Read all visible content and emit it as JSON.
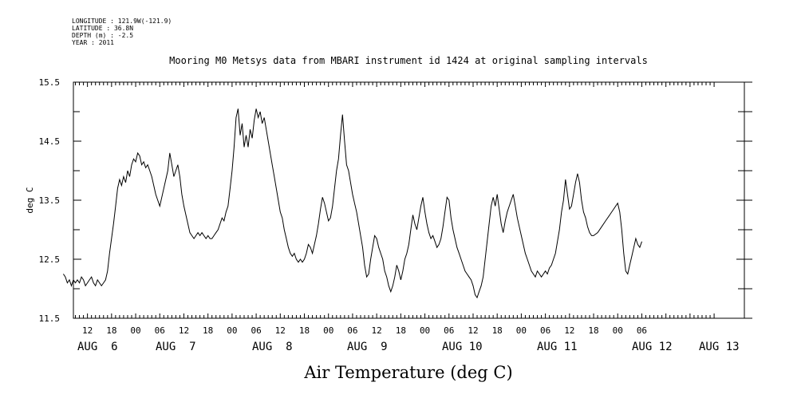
{
  "metadata": {
    "longitude": "LONGITUDE : 121.9W(-121.9)",
    "latitude": "LATITUDE : 36.8N",
    "depth": "DEPTH (m) : -2.5",
    "year": "YEAR : 2011"
  },
  "chart_data": {
    "type": "line",
    "title": "Mooring M0 Metsys data from MBARI instrument id 1424 at original sampling intervals",
    "xlabel": "Air Temperature (deg C)",
    "ylabel": "deg C",
    "x_units": "hours since 2011-08-06 00:00",
    "xlim": [
      6,
      150
    ],
    "ylim": [
      11.5,
      15.5
    ],
    "y_ticks": [
      "11.5",
      "12.5",
      "13.5",
      "14.5",
      "15.5"
    ],
    "hour_ticks": [
      {
        "t": 12,
        "label": "12"
      },
      {
        "t": 18,
        "label": "18"
      },
      {
        "t": 24,
        "label": "00"
      },
      {
        "t": 30,
        "label": "06"
      },
      {
        "t": 36,
        "label": "12"
      },
      {
        "t": 42,
        "label": "18"
      },
      {
        "t": 48,
        "label": "00"
      },
      {
        "t": 54,
        "label": "06"
      },
      {
        "t": 60,
        "label": "12"
      },
      {
        "t": 66,
        "label": "18"
      },
      {
        "t": 72,
        "label": "00"
      },
      {
        "t": 78,
        "label": "06"
      },
      {
        "t": 84,
        "label": "12"
      },
      {
        "t": 90,
        "label": "18"
      },
      {
        "t": 96,
        "label": "00"
      },
      {
        "t": 102,
        "label": "06"
      },
      {
        "t": 108,
        "label": "12"
      },
      {
        "t": 114,
        "label": "18"
      },
      {
        "t": 120,
        "label": "00"
      },
      {
        "t": 126,
        "label": "06"
      },
      {
        "t": 132,
        "label": "12"
      },
      {
        "t": 138,
        "label": "18"
      },
      {
        "t": 144,
        "label": "00"
      },
      {
        "t": 150,
        "label": "06"
      }
    ],
    "day_labels": [
      {
        "t": 12,
        "label": "AUG  6"
      },
      {
        "t": 36,
        "label": "AUG  7"
      },
      {
        "t": 60,
        "label": "AUG  8"
      },
      {
        "t": 84,
        "label": "AUG  9"
      },
      {
        "t": 108,
        "label": "AUG 10"
      },
      {
        "t": 132,
        "label": "AUG 11"
      },
      {
        "t": 156,
        "label": "AUG 12"
      },
      {
        "t": 180,
        "label": "AUG 13"
      }
    ],
    "grid": false,
    "series": [
      {
        "color": "#000000",
        "points": [
          [
            6.0,
            12.25
          ],
          [
            6.5,
            12.2
          ],
          [
            7.0,
            12.1
          ],
          [
            7.5,
            12.15
          ],
          [
            8.0,
            12.05
          ],
          [
            8.5,
            12.15
          ],
          [
            9.0,
            12.1
          ],
          [
            9.5,
            12.15
          ],
          [
            10.0,
            12.1
          ],
          [
            10.5,
            12.2
          ],
          [
            11.0,
            12.15
          ],
          [
            11.5,
            12.05
          ],
          [
            12.0,
            12.1
          ],
          [
            12.5,
            12.15
          ],
          [
            13.0,
            12.2
          ],
          [
            13.5,
            12.1
          ],
          [
            14.0,
            12.05
          ],
          [
            14.5,
            12.15
          ],
          [
            15.0,
            12.1
          ],
          [
            15.5,
            12.05
          ],
          [
            16.0,
            12.1
          ],
          [
            16.5,
            12.15
          ],
          [
            17.0,
            12.3
          ],
          [
            17.5,
            12.6
          ],
          [
            18.0,
            12.85
          ],
          [
            18.5,
            13.1
          ],
          [
            19.0,
            13.4
          ],
          [
            19.5,
            13.7
          ],
          [
            20.0,
            13.85
          ],
          [
            20.5,
            13.75
          ],
          [
            21.0,
            13.9
          ],
          [
            21.5,
            13.8
          ],
          [
            22.0,
            14.0
          ],
          [
            22.5,
            13.9
          ],
          [
            23.0,
            14.1
          ],
          [
            23.5,
            14.2
          ],
          [
            24.0,
            14.15
          ],
          [
            24.5,
            14.3
          ],
          [
            25.0,
            14.25
          ],
          [
            25.5,
            14.1
          ],
          [
            26.0,
            14.15
          ],
          [
            26.5,
            14.05
          ],
          [
            27.0,
            14.1
          ],
          [
            27.5,
            14.0
          ],
          [
            28.0,
            13.9
          ],
          [
            28.5,
            13.75
          ],
          [
            29.0,
            13.6
          ],
          [
            29.5,
            13.5
          ],
          [
            30.0,
            13.4
          ],
          [
            30.5,
            13.55
          ],
          [
            31.0,
            13.7
          ],
          [
            31.5,
            13.85
          ],
          [
            32.0,
            14.0
          ],
          [
            32.5,
            14.3
          ],
          [
            33.0,
            14.1
          ],
          [
            33.5,
            13.9
          ],
          [
            34.0,
            14.0
          ],
          [
            34.5,
            14.1
          ],
          [
            35.0,
            13.9
          ],
          [
            35.5,
            13.6
          ],
          [
            36.0,
            13.4
          ],
          [
            36.5,
            13.25
          ],
          [
            37.0,
            13.1
          ],
          [
            37.5,
            12.95
          ],
          [
            38.0,
            12.9
          ],
          [
            38.5,
            12.85
          ],
          [
            39.0,
            12.9
          ],
          [
            39.5,
            12.95
          ],
          [
            40.0,
            12.9
          ],
          [
            40.5,
            12.95
          ],
          [
            41.0,
            12.9
          ],
          [
            41.5,
            12.85
          ],
          [
            42.0,
            12.9
          ],
          [
            42.5,
            12.85
          ],
          [
            43.0,
            12.85
          ],
          [
            43.5,
            12.9
          ],
          [
            44.0,
            12.95
          ],
          [
            44.5,
            13.0
          ],
          [
            45.0,
            13.1
          ],
          [
            45.5,
            13.2
          ],
          [
            46.0,
            13.15
          ],
          [
            46.5,
            13.3
          ],
          [
            47.0,
            13.4
          ],
          [
            47.5,
            13.7
          ],
          [
            48.0,
            14.0
          ],
          [
            48.5,
            14.4
          ],
          [
            49.0,
            14.9
          ],
          [
            49.5,
            15.05
          ],
          [
            50.0,
            14.6
          ],
          [
            50.5,
            14.8
          ],
          [
            51.0,
            14.4
          ],
          [
            51.5,
            14.6
          ],
          [
            52.0,
            14.4
          ],
          [
            52.5,
            14.7
          ],
          [
            53.0,
            14.55
          ],
          [
            53.5,
            14.85
          ],
          [
            54.0,
            15.05
          ],
          [
            54.5,
            14.9
          ],
          [
            55.0,
            15.0
          ],
          [
            55.5,
            14.8
          ],
          [
            56.0,
            14.9
          ],
          [
            56.5,
            14.7
          ],
          [
            57.0,
            14.5
          ],
          [
            57.5,
            14.3
          ],
          [
            58.0,
            14.1
          ],
          [
            58.5,
            13.9
          ],
          [
            59.0,
            13.7
          ],
          [
            59.5,
            13.5
          ],
          [
            60.0,
            13.3
          ],
          [
            60.5,
            13.2
          ],
          [
            61.0,
            13.0
          ],
          [
            61.5,
            12.85
          ],
          [
            62.0,
            12.7
          ],
          [
            62.5,
            12.6
          ],
          [
            63.0,
            12.55
          ],
          [
            63.5,
            12.6
          ],
          [
            64.0,
            12.5
          ],
          [
            64.5,
            12.45
          ],
          [
            65.0,
            12.5
          ],
          [
            65.5,
            12.45
          ],
          [
            66.0,
            12.5
          ],
          [
            66.5,
            12.6
          ],
          [
            67.0,
            12.75
          ],
          [
            67.5,
            12.7
          ],
          [
            68.0,
            12.6
          ],
          [
            68.5,
            12.75
          ],
          [
            69.0,
            12.9
          ],
          [
            69.5,
            13.1
          ],
          [
            70.0,
            13.35
          ],
          [
            70.5,
            13.55
          ],
          [
            71.0,
            13.45
          ],
          [
            71.5,
            13.3
          ],
          [
            72.0,
            13.15
          ],
          [
            72.5,
            13.2
          ],
          [
            73.0,
            13.4
          ],
          [
            73.5,
            13.7
          ],
          [
            74.0,
            14.0
          ],
          [
            74.5,
            14.2
          ],
          [
            75.0,
            14.6
          ],
          [
            75.5,
            14.95
          ],
          [
            76.0,
            14.5
          ],
          [
            76.5,
            14.1
          ],
          [
            77.0,
            14.0
          ],
          [
            77.5,
            13.8
          ],
          [
            78.0,
            13.6
          ],
          [
            78.5,
            13.45
          ],
          [
            79.0,
            13.3
          ],
          [
            79.5,
            13.1
          ],
          [
            80.0,
            12.9
          ],
          [
            80.5,
            12.7
          ],
          [
            81.0,
            12.4
          ],
          [
            81.5,
            12.2
          ],
          [
            82.0,
            12.25
          ],
          [
            82.5,
            12.5
          ],
          [
            83.0,
            12.7
          ],
          [
            83.5,
            12.9
          ],
          [
            84.0,
            12.85
          ],
          [
            84.5,
            12.7
          ],
          [
            85.0,
            12.6
          ],
          [
            85.5,
            12.5
          ],
          [
            86.0,
            12.3
          ],
          [
            86.5,
            12.2
          ],
          [
            87.0,
            12.05
          ],
          [
            87.5,
            11.95
          ],
          [
            88.0,
            12.05
          ],
          [
            88.5,
            12.2
          ],
          [
            89.0,
            12.4
          ],
          [
            89.5,
            12.3
          ],
          [
            90.0,
            12.15
          ],
          [
            90.5,
            12.3
          ],
          [
            91.0,
            12.5
          ],
          [
            91.5,
            12.6
          ],
          [
            92.0,
            12.75
          ],
          [
            92.5,
            13.0
          ],
          [
            93.0,
            13.25
          ],
          [
            93.5,
            13.1
          ],
          [
            94.0,
            13.0
          ],
          [
            94.5,
            13.2
          ],
          [
            95.0,
            13.4
          ],
          [
            95.5,
            13.55
          ],
          [
            96.0,
            13.3
          ],
          [
            96.5,
            13.1
          ],
          [
            97.0,
            12.95
          ],
          [
            97.5,
            12.85
          ],
          [
            98.0,
            12.9
          ],
          [
            98.5,
            12.8
          ],
          [
            99.0,
            12.7
          ],
          [
            99.5,
            12.75
          ],
          [
            100.0,
            12.85
          ],
          [
            100.5,
            13.05
          ],
          [
            101.0,
            13.3
          ],
          [
            101.5,
            13.55
          ],
          [
            102.0,
            13.5
          ],
          [
            102.5,
            13.2
          ],
          [
            103.0,
            13.0
          ],
          [
            103.5,
            12.85
          ],
          [
            104.0,
            12.7
          ],
          [
            104.5,
            12.6
          ],
          [
            105.0,
            12.5
          ],
          [
            105.5,
            12.4
          ],
          [
            106.0,
            12.3
          ],
          [
            106.5,
            12.25
          ],
          [
            107.0,
            12.2
          ],
          [
            107.5,
            12.15
          ],
          [
            108.0,
            12.05
          ],
          [
            108.5,
            11.9
          ],
          [
            109.0,
            11.85
          ],
          [
            109.5,
            11.95
          ],
          [
            110.0,
            12.05
          ],
          [
            110.5,
            12.2
          ],
          [
            111.0,
            12.5
          ],
          [
            111.5,
            12.8
          ],
          [
            112.0,
            13.1
          ],
          [
            112.5,
            13.4
          ],
          [
            113.0,
            13.55
          ],
          [
            113.5,
            13.4
          ],
          [
            114.0,
            13.6
          ],
          [
            114.5,
            13.35
          ],
          [
            115.0,
            13.1
          ],
          [
            115.5,
            12.95
          ],
          [
            116.0,
            13.15
          ],
          [
            116.5,
            13.3
          ],
          [
            117.0,
            13.4
          ],
          [
            117.5,
            13.5
          ],
          [
            118.0,
            13.6
          ],
          [
            118.5,
            13.4
          ],
          [
            119.0,
            13.2
          ],
          [
            119.5,
            13.05
          ],
          [
            120.0,
            12.9
          ],
          [
            120.5,
            12.75
          ],
          [
            121.0,
            12.6
          ],
          [
            121.5,
            12.5
          ],
          [
            122.0,
            12.4
          ],
          [
            122.5,
            12.3
          ],
          [
            123.0,
            12.25
          ],
          [
            123.5,
            12.2
          ],
          [
            124.0,
            12.3
          ],
          [
            124.5,
            12.25
          ],
          [
            125.0,
            12.2
          ],
          [
            125.5,
            12.25
          ],
          [
            126.0,
            12.3
          ],
          [
            126.5,
            12.25
          ],
          [
            127.0,
            12.35
          ],
          [
            127.5,
            12.4
          ],
          [
            128.0,
            12.5
          ],
          [
            128.5,
            12.6
          ],
          [
            129.0,
            12.8
          ],
          [
            129.5,
            13.0
          ],
          [
            130.0,
            13.3
          ],
          [
            130.5,
            13.5
          ],
          [
            131.0,
            13.85
          ],
          [
            131.5,
            13.6
          ],
          [
            132.0,
            13.35
          ],
          [
            132.5,
            13.4
          ],
          [
            133.0,
            13.6
          ],
          [
            133.5,
            13.8
          ],
          [
            134.0,
            13.95
          ],
          [
            134.5,
            13.8
          ],
          [
            135.0,
            13.5
          ],
          [
            135.5,
            13.3
          ],
          [
            136.0,
            13.2
          ],
          [
            136.5,
            13.05
          ],
          [
            137.0,
            12.95
          ],
          [
            137.5,
            12.9
          ],
          [
            138.0,
            12.9
          ],
          [
            139.0,
            12.95
          ],
          [
            140.0,
            13.05
          ],
          [
            141.0,
            13.15
          ],
          [
            142.0,
            13.25
          ],
          [
            143.0,
            13.35
          ],
          [
            144.0,
            13.45
          ],
          [
            144.5,
            13.3
          ],
          [
            145.0,
            13.0
          ],
          [
            145.5,
            12.6
          ],
          [
            146.0,
            12.3
          ],
          [
            146.5,
            12.25
          ],
          [
            147.0,
            12.4
          ],
          [
            147.5,
            12.55
          ],
          [
            148.0,
            12.7
          ],
          [
            148.5,
            12.85
          ],
          [
            149.0,
            12.75
          ],
          [
            149.5,
            12.7
          ],
          [
            150.0,
            12.8
          ]
        ]
      }
    ]
  }
}
